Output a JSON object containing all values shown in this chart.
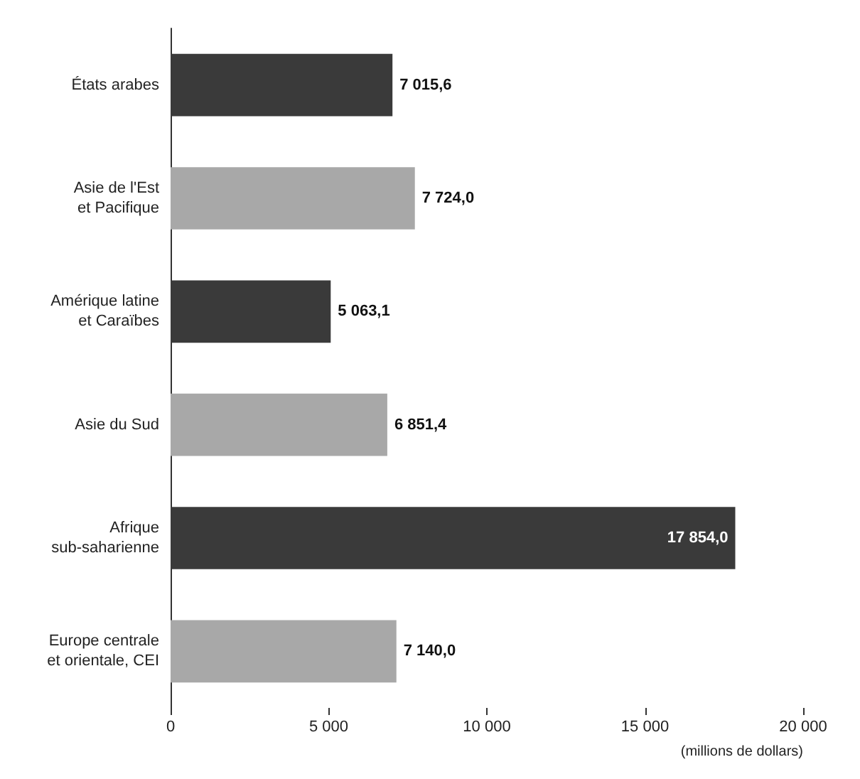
{
  "chart_data": {
    "type": "bar",
    "orientation": "horizontal",
    "categories": [
      "États arabes",
      "Asie de l'Est\net Pacifique",
      "Amérique latine\net Caraïbes",
      "Asie du Sud",
      "Afrique\nsub-saharienne",
      "Europe centrale\net orientale, CEI"
    ],
    "values": [
      7015.6,
      7724.0,
      5063.1,
      6851.4,
      17854.0,
      7140.0
    ],
    "value_labels": [
      "7 015,6",
      "7 724,0",
      "5 063,1",
      "6 851,4",
      "17 854,0",
      "7 140,0"
    ],
    "colors": [
      "#3a3a3a",
      "#a8a8a8",
      "#3a3a3a",
      "#a8a8a8",
      "#3a3a3a",
      "#a8a8a8"
    ],
    "xlim": [
      0,
      20000
    ],
    "xticks": [
      0,
      {
        "value": 5000,
        "label": "5 000"
      },
      {
        "value": 10000,
        "label": "10 000"
      },
      {
        "value": 15000,
        "label": "15 000"
      },
      {
        "value": 20000,
        "label": "20 000"
      }
    ],
    "xlabel": "(millions de dollars)"
  }
}
